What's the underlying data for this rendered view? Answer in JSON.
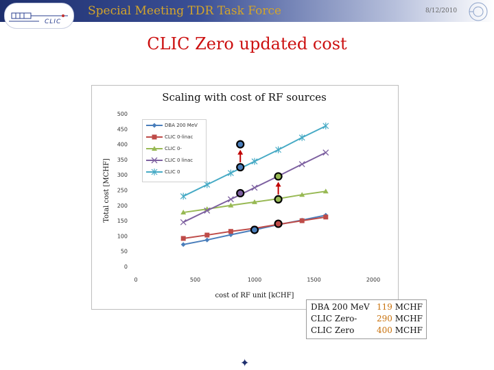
{
  "header": {
    "title": "Special Meeting TDR Task Force",
    "date": "8/12/2010",
    "logo_text": "CLIC"
  },
  "slide": {
    "title": "CLIC Zero updated cost"
  },
  "chart_data": {
    "type": "line",
    "title": "Scaling with cost of RF sources",
    "xlabel": "cost of RF unit [kCHF]",
    "ylabel": "Total cost [MCHF]",
    "xlim": [
      0,
      2000
    ],
    "ylim": [
      0,
      500
    ],
    "xticks": [
      "0",
      "500",
      "1000",
      "1500",
      "2000"
    ],
    "yticks": [
      "0",
      "50",
      "100",
      "150",
      "200",
      "250",
      "300",
      "350",
      "400",
      "450",
      "500"
    ],
    "grid": false,
    "legend_position": "top-left",
    "series": [
      {
        "name": "DBA 200 MeV",
        "color": "#4a7ebb",
        "marker": "diamond",
        "x": [
          400,
          600,
          800,
          1000,
          1200,
          1400,
          1600
        ],
        "y": [
          72,
          87,
          104,
          120,
          137,
          152,
          168
        ]
      },
      {
        "name": "CLIC 0-linac",
        "color": "#be4b48",
        "marker": "square",
        "x": [
          400,
          600,
          800,
          1000,
          1200,
          1400,
          1600
        ],
        "y": [
          92,
          103,
          115,
          125,
          138,
          150,
          162
        ]
      },
      {
        "name": "CLIC 0-",
        "color": "#98b954",
        "marker": "triangle",
        "x": [
          400,
          600,
          800,
          1000,
          1200,
          1400,
          1600
        ],
        "y": [
          177,
          188,
          200,
          211,
          222,
          235,
          246
        ]
      },
      {
        "name": "CLIC 0 linac",
        "color": "#7d60a0",
        "marker": "x",
        "x": [
          400,
          600,
          800,
          1000,
          1200,
          1400,
          1600
        ],
        "y": [
          145,
          183,
          220,
          258,
          296,
          335,
          373
        ]
      },
      {
        "name": "CLIC 0",
        "color": "#46aac5",
        "marker": "star",
        "x": [
          400,
          600,
          800,
          1000,
          1200,
          1400,
          1600
        ],
        "y": [
          230,
          268,
          306,
          344,
          382,
          422,
          460
        ]
      }
    ],
    "highlight_points": [
      {
        "x": 880,
        "y": 400,
        "fill": "#4a7ebb"
      },
      {
        "x": 880,
        "y": 325,
        "fill": "#4a7ebb"
      },
      {
        "x": 880,
        "y": 240,
        "fill": "#7d60a0"
      },
      {
        "x": 1000,
        "y": 120,
        "fill": "#4a7ebb"
      },
      {
        "x": 1200,
        "y": 295,
        "fill": "#98b954"
      },
      {
        "x": 1200,
        "y": 220,
        "fill": "#98b954"
      },
      {
        "x": 1200,
        "y": 140,
        "fill": "#be4b48"
      }
    ],
    "arrows": [
      {
        "x": 880,
        "from": 325,
        "to": 400,
        "color": "#c00000"
      },
      {
        "x": 1200,
        "from": 220,
        "to": 295,
        "color": "#c00000"
      }
    ]
  },
  "summary": {
    "rows": [
      {
        "label": "DBA 200 MeV",
        "value": "119",
        "unit": "MCHF"
      },
      {
        "label": "CLIC Zero-",
        "value": "290",
        "unit": "MCHF"
      },
      {
        "label": "CLIC Zero",
        "value": "400",
        "unit": "MCHF"
      }
    ]
  },
  "colors": {
    "header_title": "#d4a52a",
    "slide_title": "#cc1010",
    "summary_value": "#c8700a",
    "arrow": "#c00000"
  },
  "icons": {
    "bottom_icon": "star-icon",
    "cern_logo": "cern-logo-icon"
  }
}
